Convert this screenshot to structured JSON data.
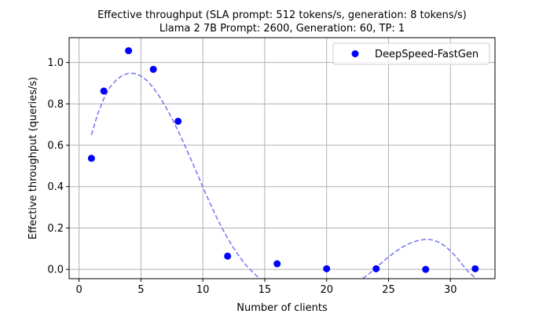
{
  "chart_data": {
    "type": "scatter",
    "title": "Effective throughput (SLA prompt: 512 tokens/s, generation: 8 tokens/s)",
    "subtitle": "Llama 2 7B Prompt: 2600, Generation: 60, TP: 1",
    "xlabel": "Number of clients",
    "ylabel": "Effective throughput (queries/s)",
    "xlim": [
      -0.8,
      33.6
    ],
    "ylim": [
      -0.045,
      1.12
    ],
    "x_ticks": [
      0,
      5,
      10,
      15,
      20,
      25,
      30
    ],
    "x_tick_labels": [
      "0",
      "5",
      "10",
      "15",
      "20",
      "25",
      "30"
    ],
    "y_ticks": [
      0.0,
      0.2,
      0.4,
      0.6,
      0.8,
      1.0
    ],
    "y_tick_labels": [
      "0.0",
      "0.2",
      "0.4",
      "0.6",
      "0.8",
      "1.0"
    ],
    "grid": true,
    "legend_position": "top-right",
    "series": [
      {
        "name": "DeepSpeed-FastGen",
        "color": "#0000ff",
        "x": [
          1,
          2,
          4,
          6,
          8,
          12,
          16,
          20,
          24,
          28,
          32
        ],
        "y": [
          0.537,
          0.862,
          1.057,
          0.967,
          0.716,
          0.064,
          0.027,
          0.003,
          0.003,
          0.0,
          0.003
        ]
      }
    ],
    "trend_line": {
      "style": "dashed",
      "color": "#7b7bf4",
      "x": [
        1,
        1.5,
        2,
        2.5,
        3,
        3.5,
        4,
        4.5,
        5,
        5.5,
        6,
        6.5,
        7,
        7.5,
        8,
        8.5,
        9,
        9.5,
        10,
        10.5,
        11,
        11.5,
        12,
        12.5,
        13,
        13.5,
        14,
        14.5,
        15,
        15.5,
        16,
        16.2,
        22.9,
        23,
        23.5,
        24,
        24.5,
        25,
        25.5,
        26,
        26.5,
        27,
        27.5,
        28,
        28.5,
        29,
        29.5,
        30,
        30.5,
        31,
        31.5,
        32
      ],
      "y": [
        0.65,
        0.75,
        0.825,
        0.88,
        0.915,
        0.938,
        0.948,
        0.947,
        0.935,
        0.912,
        0.878,
        0.835,
        0.785,
        0.73,
        0.67,
        0.605,
        0.537,
        0.468,
        0.398,
        0.33,
        0.265,
        0.205,
        0.15,
        0.102,
        0.058,
        0.02,
        -0.012,
        -0.04,
        -0.062,
        -0.078,
        -0.088,
        -0.09,
        -0.045,
        -0.04,
        -0.018,
        0.008,
        0.035,
        0.06,
        0.083,
        0.103,
        0.12,
        0.133,
        0.141,
        0.145,
        0.143,
        0.133,
        0.115,
        0.09,
        0.058,
        0.02,
        -0.015,
        -0.04
      ]
    }
  }
}
